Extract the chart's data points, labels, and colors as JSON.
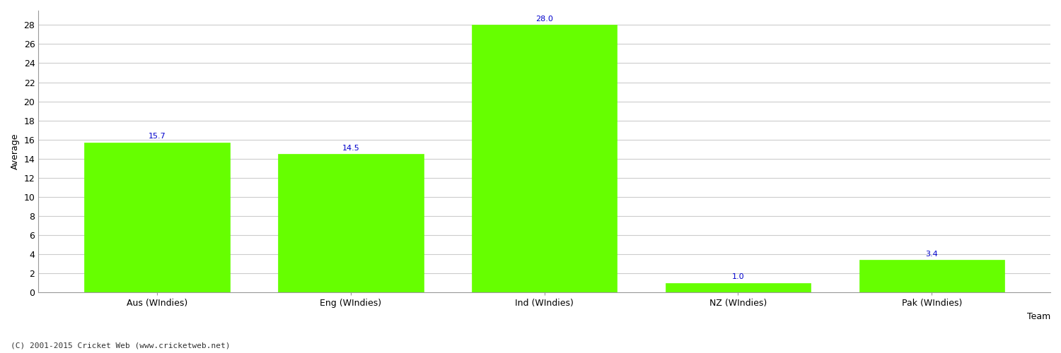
{
  "categories": [
    "Aus (WIndies)",
    "Eng (WIndies)",
    "Ind (WIndies)",
    "NZ (WIndies)",
    "Pak (WIndies)"
  ],
  "values": [
    15.7,
    14.5,
    28.0,
    1.0,
    3.4
  ],
  "bar_color": "#66ff00",
  "bar_edge_color": "#66ff00",
  "label_color": "#0000cc",
  "xlabel": "Team",
  "ylabel": "Average",
  "ylim": [
    0,
    29.5
  ],
  "yticks": [
    0,
    2,
    4,
    6,
    8,
    10,
    12,
    14,
    16,
    18,
    20,
    22,
    24,
    26,
    28
  ],
  "grid_color": "#cccccc",
  "background_color": "#ffffff",
  "footer": "(C) 2001-2015 Cricket Web (www.cricketweb.net)",
  "label_fontsize": 8,
  "axis_label_fontsize": 9,
  "tick_fontsize": 9,
  "footer_fontsize": 8
}
